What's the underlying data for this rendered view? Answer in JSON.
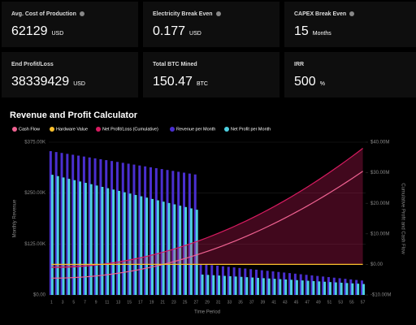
{
  "cards": [
    {
      "label": "Avg. Cost of Production",
      "value": 62129,
      "unit": "USD",
      "info": true
    },
    {
      "label": "Electricity Break Even",
      "value": 0.177,
      "unit": "USD",
      "info": true
    },
    {
      "label": "CAPEX Break Even",
      "value": 15,
      "unit": "Months",
      "info": true
    },
    {
      "label": "End Profit/Loss",
      "value": 38339429,
      "unit": "USD"
    },
    {
      "label": "Total BTC Mined",
      "value": 150.47,
      "unit": "BTC"
    },
    {
      "label": "IRR",
      "value": 500,
      "unit": "%"
    }
  ],
  "chart_data": {
    "type": "bar",
    "title": "Revenue and Profit Calculator",
    "x_label": "Time Period",
    "y_label": "Monthly Revenue",
    "y2_label": "Cumulative Profit and Cash Flow",
    "categories": [
      "1",
      null,
      "3",
      null,
      "5",
      null,
      "7",
      null,
      "9",
      null,
      "11",
      null,
      "13",
      null,
      "15",
      null,
      "17",
      null,
      "19",
      null,
      "21",
      null,
      "23",
      null,
      "25",
      null,
      "27",
      null,
      "29",
      null,
      "31",
      null,
      "33",
      null,
      "35",
      null,
      "37",
      null,
      "39",
      null,
      "41",
      null,
      "43",
      null,
      "45",
      null,
      "47",
      null,
      "49",
      null,
      "51",
      null,
      "53",
      null,
      "55",
      null,
      "57"
    ],
    "ylim": [
      0,
      375
    ],
    "yticks": [
      {
        "value": 0,
        "label": "$0.00"
      },
      {
        "value": 125,
        "label": "$125.00K"
      },
      {
        "value": 250,
        "label": "$250.00K"
      },
      {
        "value": 375,
        "label": "$375.00K"
      }
    ],
    "y2lim": [
      -10,
      40
    ],
    "y2ticks": [
      {
        "value": -10,
        "label": "-$10.00M"
      },
      {
        "value": 0,
        "label": "$0.00"
      },
      {
        "value": 10,
        "label": "$10.00M"
      },
      {
        "value": 20,
        "label": "$20.00M"
      },
      {
        "value": 30,
        "label": "$30.00M"
      },
      {
        "value": 40,
        "label": "$40.00M"
      }
    ],
    "grid": true,
    "series": [
      {
        "name": "Cash Flow",
        "color": "#f06292",
        "type": "line",
        "axis": "y2",
        "values": [
          -4.5,
          -4.49,
          -4.46,
          -4.4,
          -4.32,
          -4.22,
          -4.1,
          -3.95,
          -3.79,
          -3.6,
          -3.38,
          -3.15,
          -2.89,
          -2.61,
          -2.31,
          -1.99,
          -1.64,
          -1.27,
          -0.88,
          -0.47,
          -0.04,
          0.42,
          0.9,
          1.4,
          1.93,
          2.48,
          3.04,
          3.64,
          4.25,
          4.89,
          5.54,
          6.22,
          6.93,
          7.65,
          8.4,
          9.17,
          9.96,
          10.78,
          11.61,
          12.47,
          13.36,
          14.26,
          15.19,
          16.13,
          17.11,
          18.1,
          19.11,
          20.15,
          21.21,
          22.3,
          23.4,
          24.53,
          25.68,
          26.85,
          28.04,
          29.26,
          30.5
        ]
      },
      {
        "name": "Hardware Value",
        "color": "#fbc02d",
        "type": "line",
        "axis": "y2",
        "values": [
          0,
          0,
          0,
          0,
          0,
          0,
          0,
          0,
          0,
          0,
          0,
          0,
          0,
          0,
          0,
          0,
          0,
          0,
          0,
          0,
          0,
          0,
          0,
          0,
          0,
          0,
          0,
          0,
          0,
          0,
          0,
          0,
          0,
          0,
          0,
          0,
          0,
          0,
          0,
          0,
          0,
          0,
          0,
          0,
          0,
          0,
          0,
          0,
          0,
          0,
          0,
          0,
          0,
          0,
          0,
          0,
          0
        ]
      },
      {
        "name": "Net Profit/Loss (Cumulative)",
        "color": "#d81b60",
        "type": "area",
        "axis": "y2",
        "values": [
          -1,
          -0.99,
          -0.95,
          -0.89,
          -0.8,
          -0.69,
          -0.55,
          -0.39,
          -0.2,
          0.01,
          0.24,
          0.5,
          0.79,
          1.1,
          1.44,
          1.8,
          2.18,
          2.59,
          3.03,
          3.49,
          3.97,
          4.48,
          5.02,
          5.58,
          6.16,
          6.77,
          7.41,
          8.07,
          8.75,
          9.46,
          10.19,
          10.95,
          11.73,
          12.54,
          13.38,
          14.23,
          15.12,
          16.02,
          16.96,
          17.91,
          18.9,
          19.9,
          20.94,
          21.99,
          23.08,
          24.18,
          25.31,
          26.47,
          27.65,
          28.86,
          30.09,
          31.35,
          32.63,
          33.93,
          35.26,
          36.62,
          38
        ]
      },
      {
        "name": "Revenue per Month",
        "color": "#4a2fd0",
        "type": "bar",
        "values": [
          353,
          350.8,
          348.6,
          346.4,
          344.2,
          342,
          339.8,
          337.6,
          335.4,
          333.2,
          331,
          328.8,
          326.6,
          324.4,
          322.2,
          320,
          317.8,
          315.6,
          313.4,
          311.2,
          309,
          306.8,
          304.6,
          302.4,
          300.2,
          298,
          295.8,
          76,
          74.6,
          73.2,
          71.8,
          70.4,
          69,
          67.6,
          66.2,
          64.8,
          63.4,
          62,
          60.6,
          59.2,
          57.8,
          56.4,
          55,
          53.6,
          52.2,
          50.8,
          49.4,
          48,
          46.6,
          45.2,
          43.8,
          42.4,
          41,
          39.6,
          38.2,
          36.8,
          35.4
        ]
      },
      {
        "name": "Net Profit per Month",
        "color": "#4dd0e1",
        "type": "bar",
        "values": [
          295,
          291.7,
          288.4,
          285.1,
          281.8,
          278.5,
          275.2,
          271.9,
          268.6,
          265.3,
          262,
          258.7,
          255.4,
          252.1,
          248.8,
          245.5,
          242.2,
          238.9,
          235.6,
          232.3,
          229,
          225.7,
          222.4,
          219.1,
          215.8,
          212.5,
          209.2,
          50,
          49.2,
          48.4,
          47.6,
          46.8,
          46,
          45.2,
          44.4,
          43.6,
          42.8,
          42,
          41.2,
          40.4,
          39.6,
          38.8,
          38,
          37.2,
          36.4,
          35.6,
          34.8,
          34,
          33.2,
          32.4,
          31.6,
          30.8,
          30,
          29.2,
          28.4,
          27.6,
          26.8
        ]
      }
    ]
  }
}
